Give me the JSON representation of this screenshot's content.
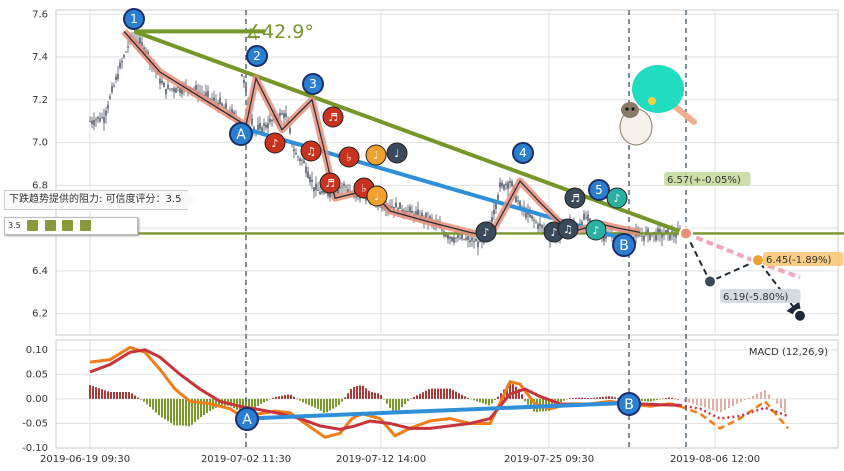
{
  "chart_data": [
    {
      "type": "candlestick",
      "panel": "price",
      "ylim": [
        6.1,
        7.62
      ],
      "y_ticks": [
        "7.6",
        "7.4",
        "7.2",
        "7.0",
        "6.8",
        "6.6",
        "6.4",
        "6.2"
      ],
      "x_tick_labels": [
        "2019-06-19 09:30",
        "2019-07-02 11:30",
        "2019-07-12 14:00",
        "2019-07-25 09:30",
        "2019-08-06 12:00"
      ],
      "close_path": [
        [
          0,
          7.1
        ],
        [
          14,
          7.12
        ],
        [
          30,
          7.35
        ],
        [
          42,
          7.5
        ],
        [
          55,
          7.44
        ],
        [
          75,
          7.25
        ],
        [
          100,
          7.26
        ],
        [
          130,
          7.18
        ],
        [
          150,
          7.1
        ],
        [
          152,
          7.32
        ],
        [
          165,
          7.05
        ],
        [
          175,
          7.08
        ],
        [
          195,
          7.14
        ],
        [
          205,
          6.95
        ],
        [
          215,
          6.9
        ],
        [
          225,
          6.78
        ],
        [
          235,
          6.76
        ],
        [
          245,
          6.78
        ],
        [
          255,
          6.8
        ],
        [
          265,
          6.74
        ],
        [
          275,
          6.76
        ],
        [
          290,
          6.72
        ],
        [
          310,
          6.69
        ],
        [
          340,
          6.64
        ],
        [
          360,
          6.56
        ],
        [
          395,
          6.53
        ],
        [
          410,
          6.79
        ],
        [
          420,
          6.82
        ],
        [
          430,
          6.7
        ],
        [
          445,
          6.63
        ],
        [
          460,
          6.57
        ],
        [
          470,
          6.56
        ],
        [
          480,
          6.64
        ],
        [
          486,
          6.6
        ],
        [
          496,
          6.65
        ],
        [
          505,
          6.58
        ],
        [
          530,
          6.55
        ],
        [
          560,
          6.57
        ],
        [
          590,
          6.57
        ]
      ],
      "resistance_level": 6.575,
      "projection": [
        [
          590,
          6.57
        ],
        [
          613,
          6.35
        ],
        [
          660,
          6.45
        ],
        [
          698,
          6.19
        ]
      ],
      "projection_alt": [
        [
          590,
          6.57
        ],
        [
          675,
          6.45
        ],
        [
          698,
          6.38
        ]
      ],
      "projection_labels": [
        "6.57(+-0.05%)",
        "6.45(-1.89%)",
        "6.19(-5.80%)"
      ],
      "trend_angle_label": "42.9°",
      "wave_labels": [
        "1",
        "2",
        "3",
        "4",
        "5"
      ],
      "channel_labels": [
        "A",
        "B"
      ],
      "resistance_note": "下跌趋势提供的阻力: 可信度评分：3.5",
      "rating_value": "3.5"
    },
    {
      "type": "line",
      "panel": "macd",
      "title": "MACD (12,26,9)",
      "ylim": [
        -0.1,
        0.12
      ],
      "y_ticks": [
        "0.10",
        "0.05",
        "0.00",
        "-0.05",
        "-0.10"
      ],
      "dif": [
        [
          0,
          0.075
        ],
        [
          20,
          0.08
        ],
        [
          40,
          0.105
        ],
        [
          55,
          0.095
        ],
        [
          70,
          0.06
        ],
        [
          85,
          0.02
        ],
        [
          100,
          -0.005
        ],
        [
          120,
          -0.01
        ],
        [
          140,
          -0.02
        ],
        [
          155,
          -0.04
        ],
        [
          170,
          -0.03
        ],
        [
          185,
          -0.025
        ],
        [
          200,
          -0.028
        ],
        [
          215,
          -0.05
        ],
        [
          235,
          -0.078
        ],
        [
          250,
          -0.07
        ],
        [
          262,
          -0.04
        ],
        [
          272,
          -0.03
        ],
        [
          290,
          -0.04
        ],
        [
          305,
          -0.075
        ],
        [
          320,
          -0.06
        ],
        [
          340,
          -0.045
        ],
        [
          360,
          -0.04
        ],
        [
          380,
          -0.05
        ],
        [
          400,
          -0.05
        ],
        [
          412,
          0.0
        ],
        [
          420,
          0.035
        ],
        [
          430,
          0.03
        ],
        [
          445,
          -0.01
        ],
        [
          460,
          -0.02
        ],
        [
          480,
          -0.01
        ],
        [
          500,
          -0.01
        ],
        [
          520,
          -0.005
        ],
        [
          540,
          -0.01
        ],
        [
          560,
          -0.015
        ],
        [
          580,
          -0.01
        ],
        [
          590,
          -0.015
        ]
      ],
      "dea": [
        [
          0,
          0.055
        ],
        [
          20,
          0.07
        ],
        [
          40,
          0.095
        ],
        [
          55,
          0.1
        ],
        [
          70,
          0.085
        ],
        [
          90,
          0.05
        ],
        [
          110,
          0.02
        ],
        [
          130,
          -0.005
        ],
        [
          150,
          -0.015
        ],
        [
          170,
          -0.022
        ],
        [
          190,
          -0.03
        ],
        [
          210,
          -0.04
        ],
        [
          230,
          -0.055
        ],
        [
          250,
          -0.062
        ],
        [
          265,
          -0.055
        ],
        [
          280,
          -0.045
        ],
        [
          300,
          -0.05
        ],
        [
          320,
          -0.06
        ],
        [
          340,
          -0.06
        ],
        [
          360,
          -0.055
        ],
        [
          380,
          -0.05
        ],
        [
          400,
          -0.04
        ],
        [
          420,
          0.01
        ],
        [
          435,
          0.02
        ],
        [
          450,
          0.005
        ],
        [
          470,
          -0.01
        ],
        [
          490,
          -0.012
        ],
        [
          510,
          -0.01
        ],
        [
          530,
          -0.008
        ],
        [
          550,
          -0.01
        ],
        [
          570,
          -0.012
        ],
        [
          590,
          -0.013
        ]
      ],
      "dif_projection": [
        [
          590,
          -0.015
        ],
        [
          610,
          -0.03
        ],
        [
          630,
          -0.06
        ],
        [
          650,
          -0.04
        ],
        [
          675,
          -0.005
        ],
        [
          698,
          -0.06
        ]
      ],
      "dea_projection": [
        [
          590,
          -0.013
        ],
        [
          610,
          -0.02
        ],
        [
          630,
          -0.04
        ],
        [
          650,
          -0.035
        ],
        [
          675,
          -0.018
        ],
        [
          698,
          -0.035
        ]
      ],
      "channel_labels": [
        "A",
        "B"
      ]
    }
  ],
  "colors": {
    "candle": "#3a4150",
    "trend_down": "#77962a",
    "trend_channel": "#2f8fd8",
    "wave_path": "#e8907a",
    "dif": "#ef7d1a",
    "dea": "#c8343b",
    "hist_pos": "#a83a3a",
    "hist_neg": "#7a9a2a",
    "wave_circle": "#2a7fd0",
    "note_red": "#c8321e",
    "note_orange": "#f0a030",
    "note_dark": "#3a4a5a",
    "note_teal": "#2ab0a0"
  },
  "icons": [
    "music-note-icon",
    "ping-pong-paddle-icon",
    "dog-sticker-icon",
    "star-rating-icon"
  ]
}
